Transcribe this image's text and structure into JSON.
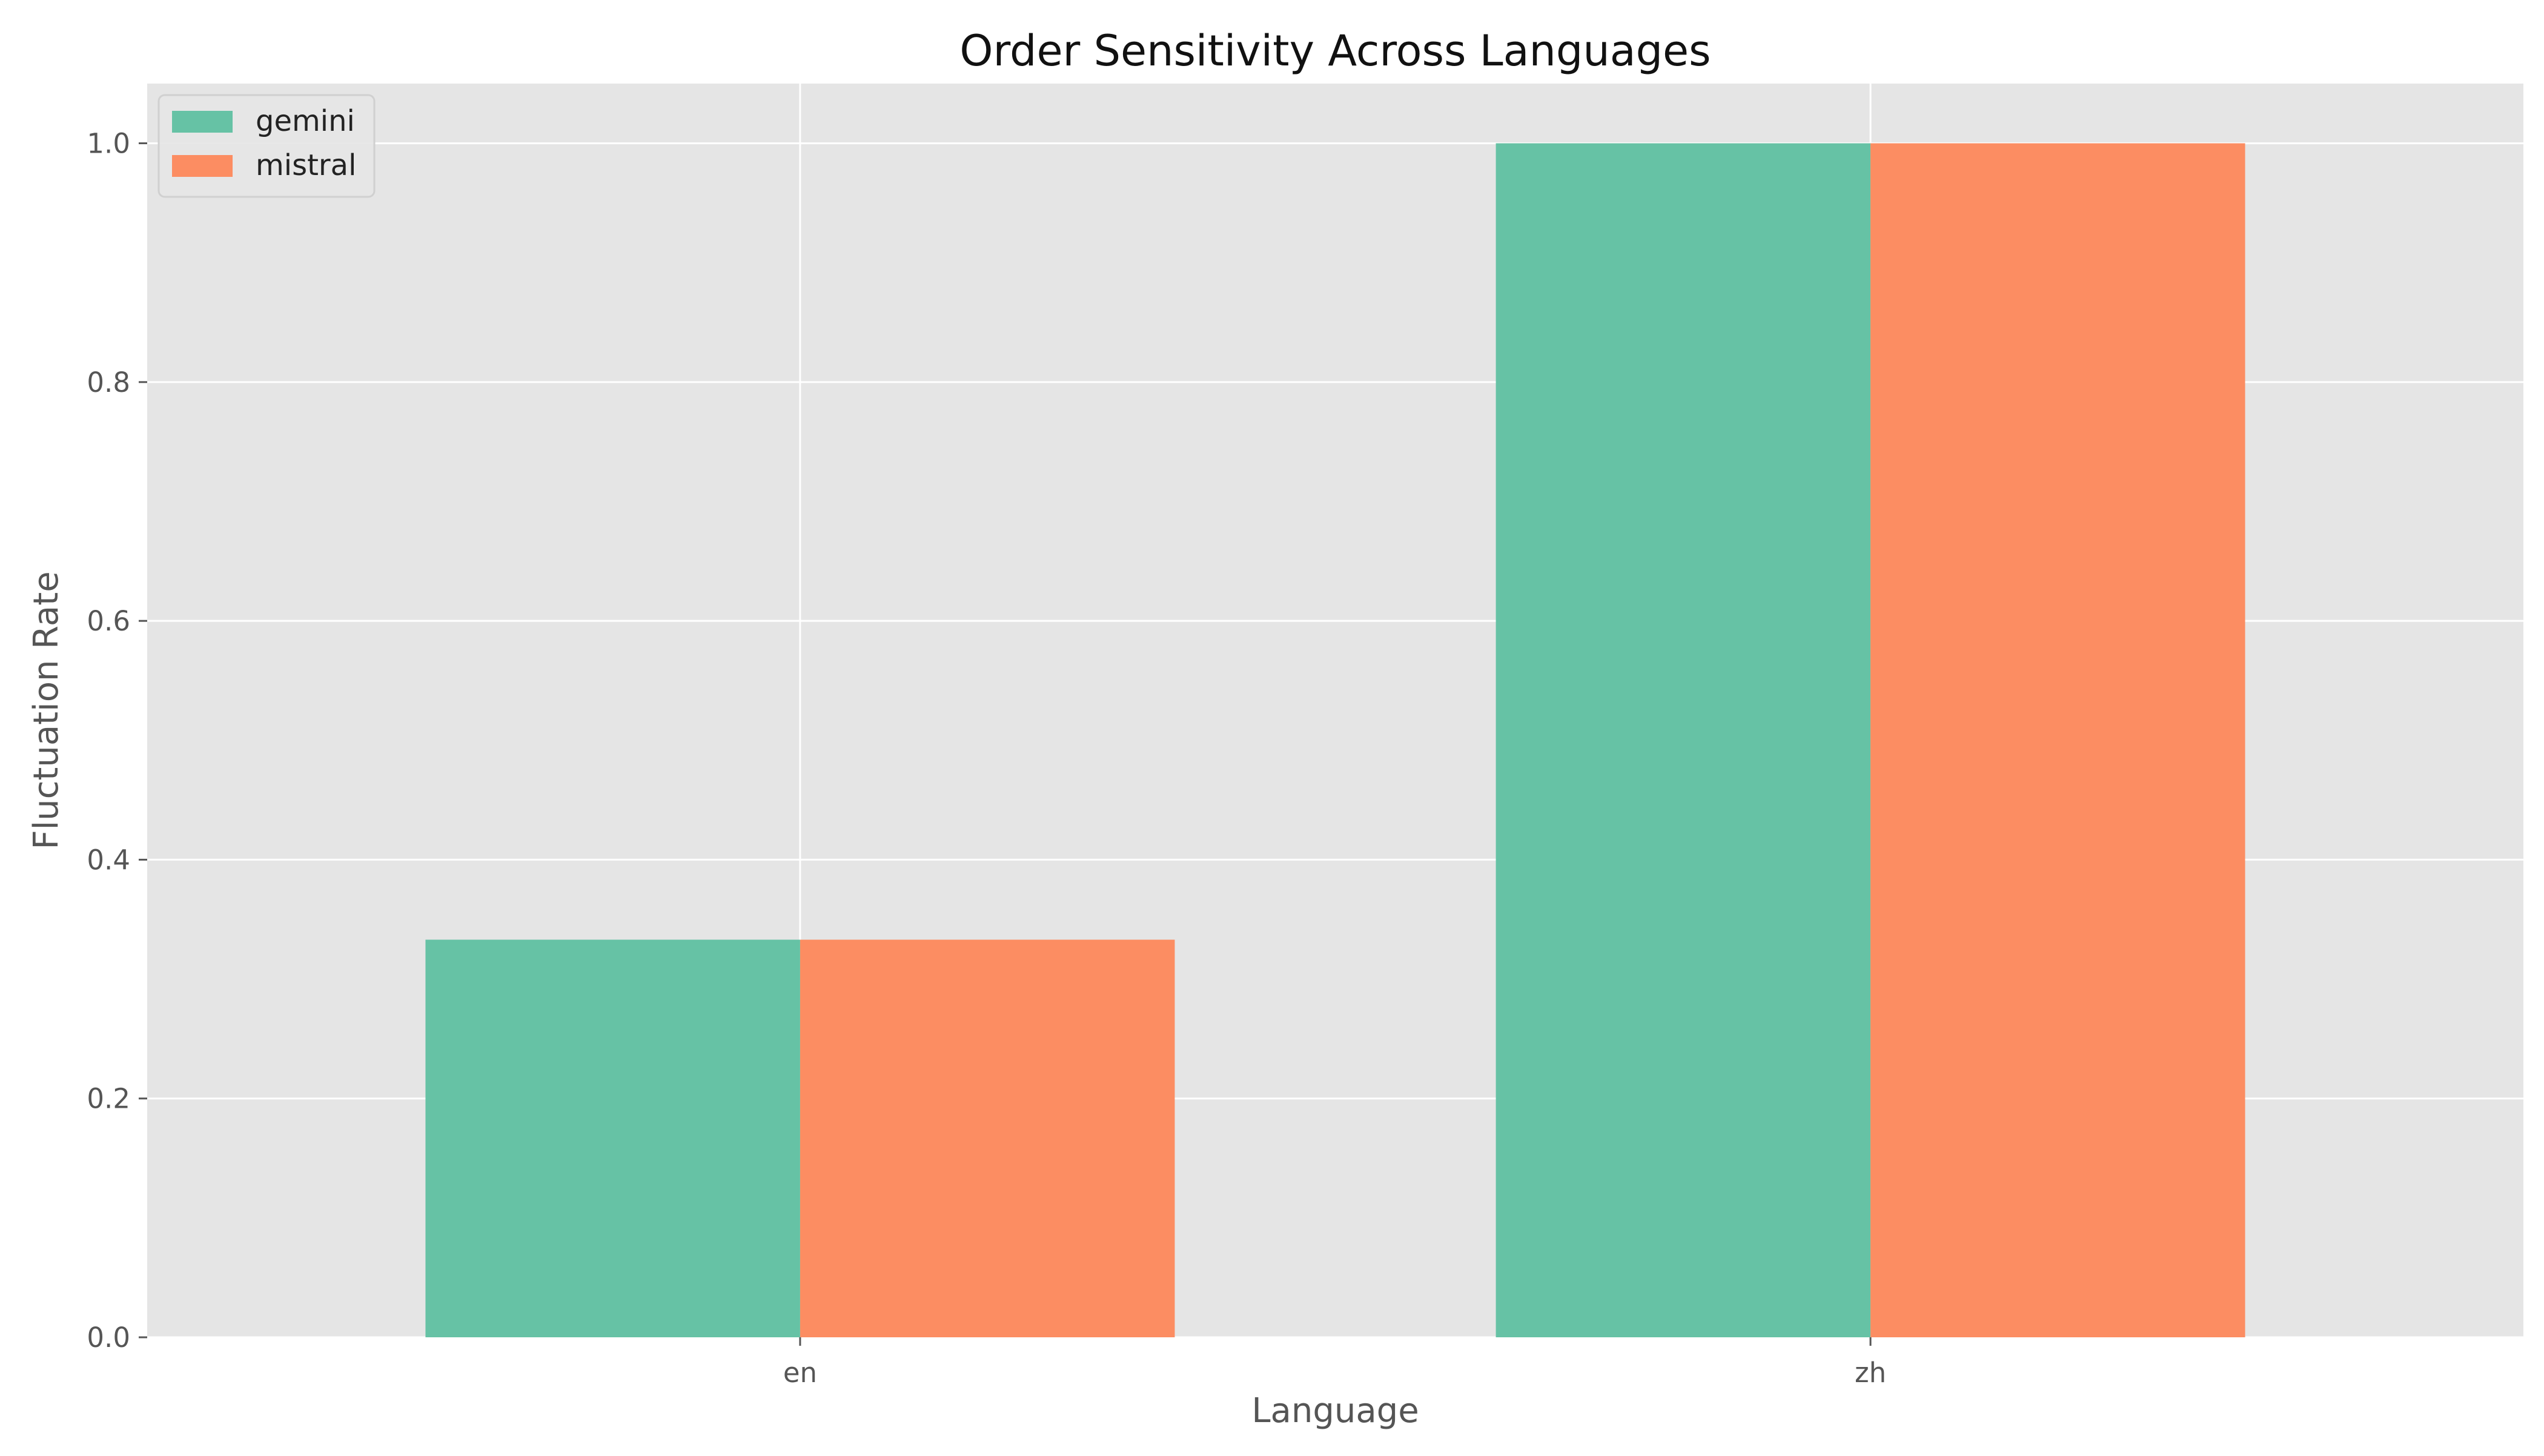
{
  "chart_data": {
    "type": "bar",
    "title": "Order Sensitivity Across Languages",
    "xlabel": "Language",
    "ylabel": "Fluctuation Rate",
    "categories": [
      "en",
      "zh"
    ],
    "series": [
      {
        "name": "gemini",
        "color": "#66c2a5",
        "values": [
          0.333,
          1.0
        ]
      },
      {
        "name": "mistral",
        "color": "#fc8d62",
        "values": [
          0.333,
          1.0
        ]
      }
    ],
    "ylim": [
      0,
      1.05
    ],
    "yticks": [
      0.0,
      0.2,
      0.4,
      0.6,
      0.8,
      1.0
    ],
    "ytick_labels": [
      "0.0",
      "0.2",
      "0.4",
      "0.6",
      "0.8",
      "1.0"
    ],
    "grid": true,
    "legend_position": "top-left",
    "plot_background": "#e5e5e5",
    "grid_color": "#ffffff"
  }
}
